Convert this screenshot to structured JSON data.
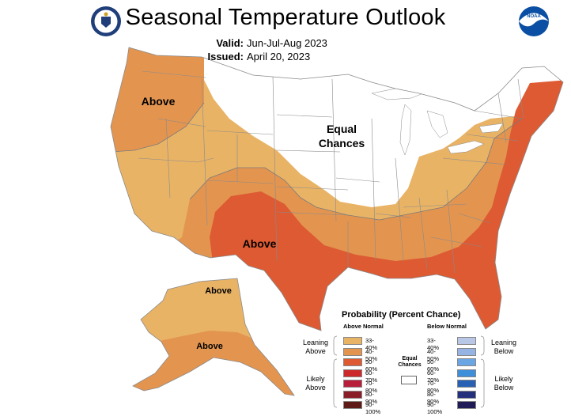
{
  "header": {
    "title": "Seasonal Temperature Outlook",
    "valid_label": "Valid:",
    "valid_value": "Jun-Jul-Aug 2023",
    "issued_label": "Issued:",
    "issued_value": "April 20, 2023",
    "noaa_logo_text": "NOAA"
  },
  "map_labels": {
    "northwest": "Above",
    "central_line1": "Equal",
    "central_line2": "Chances",
    "southwest": "Above",
    "alaska_north": "Above",
    "alaska_south": "Above"
  },
  "legend": {
    "title": "Probability (Percent Chance)",
    "above_header": "Above Normal",
    "below_header": "Below Normal",
    "leaning_above": "Leaning Above",
    "likely_above": "Likely Above",
    "leaning_below": "Leaning Below",
    "likely_below": "Likely Below",
    "equal_chances": "Equal Chances",
    "above_rows": [
      {
        "range": "33-40%",
        "color": "#e9b366"
      },
      {
        "range": "40-50%",
        "color": "#e39550"
      },
      {
        "range": "50-60%",
        "color": "#dd5a33"
      },
      {
        "range": "60-70%",
        "color": "#cc2a2a"
      },
      {
        "range": "70-80%",
        "color": "#b81f3b"
      },
      {
        "range": "80-90%",
        "color": "#8a1e28"
      },
      {
        "range": "90-100%",
        "color": "#5e1a16"
      }
    ],
    "below_rows": [
      {
        "range": "33-40%",
        "color": "#b9c7e7"
      },
      {
        "range": "40-50%",
        "color": "#95b3e3"
      },
      {
        "range": "50-60%",
        "color": "#6aa6e3"
      },
      {
        "range": "60-70%",
        "color": "#3d8fd9"
      },
      {
        "range": "70-80%",
        "color": "#2861b3"
      },
      {
        "range": "80-90%",
        "color": "#25307c"
      },
      {
        "range": "90-100%",
        "color": "#201a57"
      }
    ]
  },
  "colors": {
    "light_above": "#e9b366",
    "mid_above": "#e39550",
    "strong_above": "#dd5a33",
    "equal_chances": "#ffffff",
    "boundary": "#8a8a8a"
  }
}
